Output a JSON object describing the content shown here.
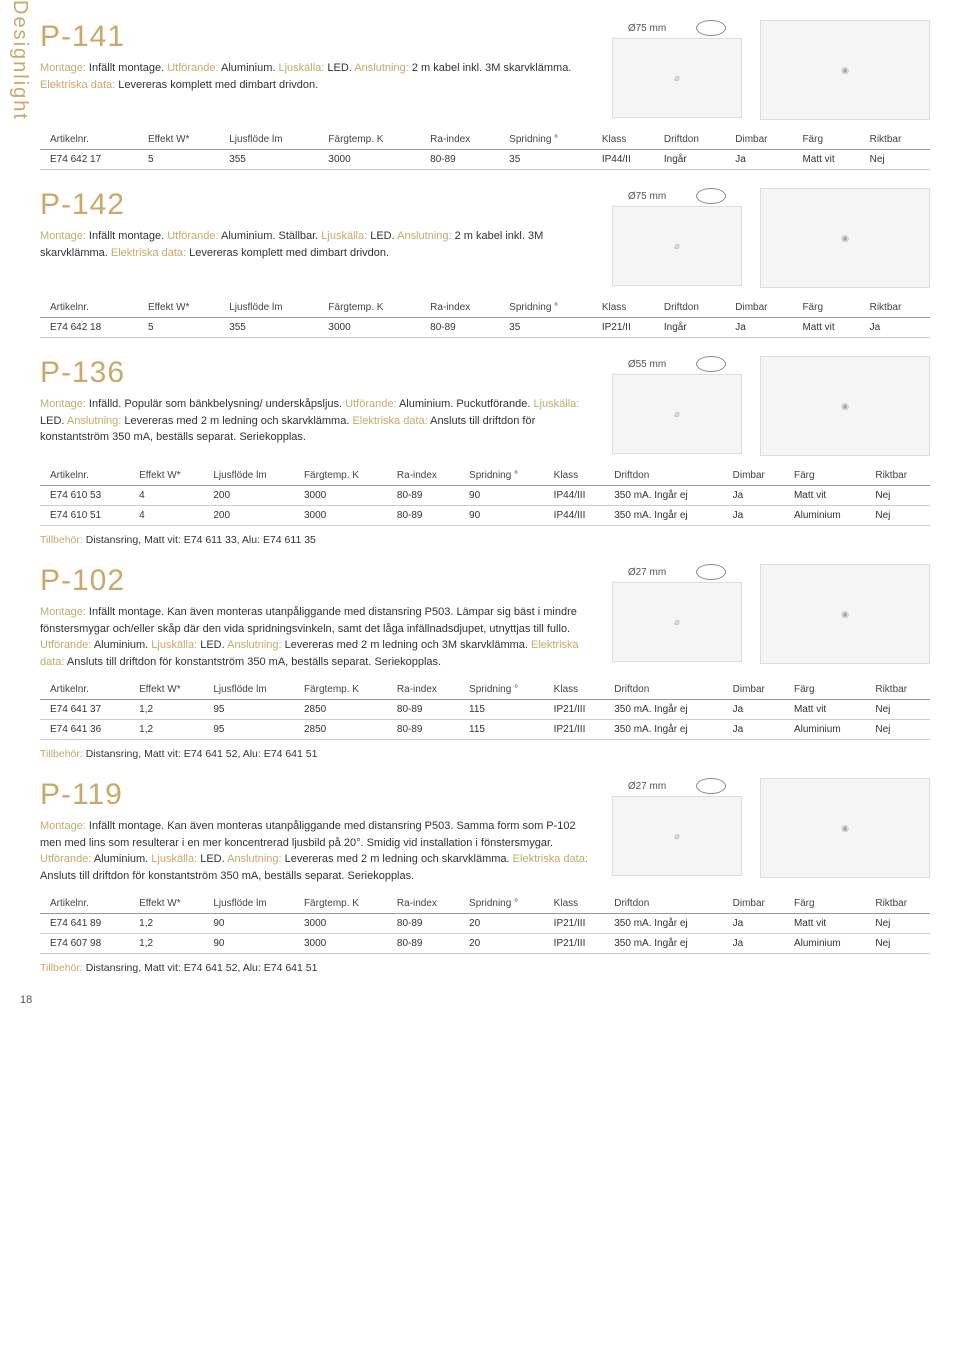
{
  "side_label": "Designlight",
  "page_number": "18",
  "columns": [
    "Artikelnr.",
    "Effekt W*",
    "Ljusflöde lm",
    "Färgtemp. K",
    "Ra-index",
    "Spridning °",
    "Klass",
    "Driftdon",
    "Dimbar",
    "Färg",
    "Riktbar"
  ],
  "products": [
    {
      "title": "P-141",
      "desc_parts": [
        {
          "k": "Montage:",
          "t": " Infällt montage. "
        },
        {
          "k": "Utförande:",
          "t": " Aluminium. "
        },
        {
          "k": "Ljuskälla:",
          "t": " LED. "
        },
        {
          "k": "Anslutning:",
          "t": " 2 m kabel inkl. 3M skarvklämma. "
        },
        {
          "k": "Elektriska data:",
          "t": " Levereras komplett med dimbart drivdon."
        }
      ],
      "dim_top": "Ø75 mm",
      "rows": [
        [
          "E74 642 17",
          "5",
          "355",
          "3000",
          "80-89",
          "35",
          "IP44/II",
          "Ingår",
          "Ja",
          "Matt vit",
          "Nej"
        ]
      ]
    },
    {
      "title": "P-142",
      "desc_parts": [
        {
          "k": "Montage:",
          "t": " Infällt montage. "
        },
        {
          "k": "Utförande:",
          "t": " Aluminium. Ställbar. "
        },
        {
          "k": "Ljuskälla:",
          "t": " LED. "
        },
        {
          "k": "Anslutning:",
          "t": " 2 m kabel inkl. 3M skarvklämma. "
        },
        {
          "k": "Elektriska data:",
          "t": " Levereras komplett med dimbart drivdon."
        }
      ],
      "dim_top": "Ø75 mm",
      "rows": [
        [
          "E74 642 18",
          "5",
          "355",
          "3000",
          "80-89",
          "35",
          "IP21/II",
          "Ingår",
          "Ja",
          "Matt vit",
          "Ja"
        ]
      ]
    },
    {
      "title": "P-136",
      "desc_parts": [
        {
          "k": "Montage:",
          "t": " Infälld. Populär som bänkbelysning/ underskåpsljus. "
        },
        {
          "k": "Utförande:",
          "t": " Aluminium. Puckutförande. "
        },
        {
          "k": "Ljuskälla:",
          "t": " LED. "
        },
        {
          "k": "Anslutning:",
          "t": " Levereras med 2 m ledning och skarvklämma. "
        },
        {
          "k": "Elektriska data:",
          "t": " Ansluts till driftdon för konstantström 350 mA, beställs separat. Seriekopplas."
        }
      ],
      "dim_top": "Ø55 mm",
      "rows": [
        [
          "E74 610 53",
          "4",
          "200",
          "3000",
          "80-89",
          "90",
          "IP44/III",
          "350 mA. Ingår ej",
          "Ja",
          "Matt vit",
          "Nej"
        ],
        [
          "E74 610 51",
          "4",
          "200",
          "3000",
          "80-89",
          "90",
          "IP44/III",
          "350 mA. Ingår ej",
          "Ja",
          "Aluminium",
          "Nej"
        ]
      ],
      "accessory": {
        "k": "Tillbehör:",
        "t": " Distansring, Matt vit: E74 611 33, Alu: E74 611 35"
      }
    },
    {
      "title": "P-102",
      "desc_parts": [
        {
          "k": "Montage:",
          "t": " Infällt montage. Kan även monteras utanpåliggande med distansring P503. Lämpar sig bäst i mindre fönstersmygar och/eller skåp där den vida spridningsvinkeln, samt det låga infällnadsdjupet, utnyttjas till fullo. "
        },
        {
          "k": "Utförande:",
          "t": " Aluminium. "
        },
        {
          "k": "Ljuskälla:",
          "t": " LED. "
        },
        {
          "k": "Anslutning:",
          "t": " Levereras med 2 m ledning och 3M skarvklämma. "
        },
        {
          "k": "Elektriska data:",
          "t": " Ansluts till driftdon för konstantström 350 mA, beställs separat. Seriekopplas."
        }
      ],
      "dim_top": "Ø27 mm",
      "rows": [
        [
          "E74 641 37",
          "1,2",
          "95",
          "2850",
          "80-89",
          "115",
          "IP21/III",
          "350 mA. Ingår ej",
          "Ja",
          "Matt vit",
          "Nej"
        ],
        [
          "E74 641 36",
          "1,2",
          "95",
          "2850",
          "80-89",
          "115",
          "IP21/III",
          "350 mA. Ingår ej",
          "Ja",
          "Aluminium",
          "Nej"
        ]
      ],
      "accessory": {
        "k": "Tillbehör:",
        "t": " Distansring, Matt vit: E74 641 52, Alu: E74 641 51"
      }
    },
    {
      "title": "P-119",
      "desc_parts": [
        {
          "k": "Montage:",
          "t": " Infällt montage. Kan även monteras utanpåliggande med distansring P503. Samma form som P-102 men med lins som resulterar i en mer koncentrerad ljusbild på 20°. Smidig vid installation i fönstersmygar. "
        },
        {
          "k": "Utförande:",
          "t": " Aluminium. "
        },
        {
          "k": "Ljuskälla:",
          "t": " LED. "
        },
        {
          "k": "Anslutning:",
          "t": " Levereras med 2 m ledning och skarvklämma. "
        },
        {
          "k": "Elektriska data:",
          "t": " Ansluts till driftdon för konstantström 350 mA, beställs separat. Seriekopplas."
        }
      ],
      "dim_top": "Ø27 mm",
      "rows": [
        [
          "E74 641 89",
          "1,2",
          "90",
          "3000",
          "80-89",
          "20",
          "IP21/III",
          "350 mA. Ingår ej",
          "Ja",
          "Matt vit",
          "Nej"
        ],
        [
          "E74 607 98",
          "1,2",
          "90",
          "3000",
          "80-89",
          "20",
          "IP21/III",
          "350 mA. Ingår ej",
          "Ja",
          "Aluminium",
          "Nej"
        ]
      ],
      "accessory": {
        "k": "Tillbehör:",
        "t": " Distansring, Matt vit: E74 641 52, Alu: E74 641 51"
      }
    }
  ]
}
